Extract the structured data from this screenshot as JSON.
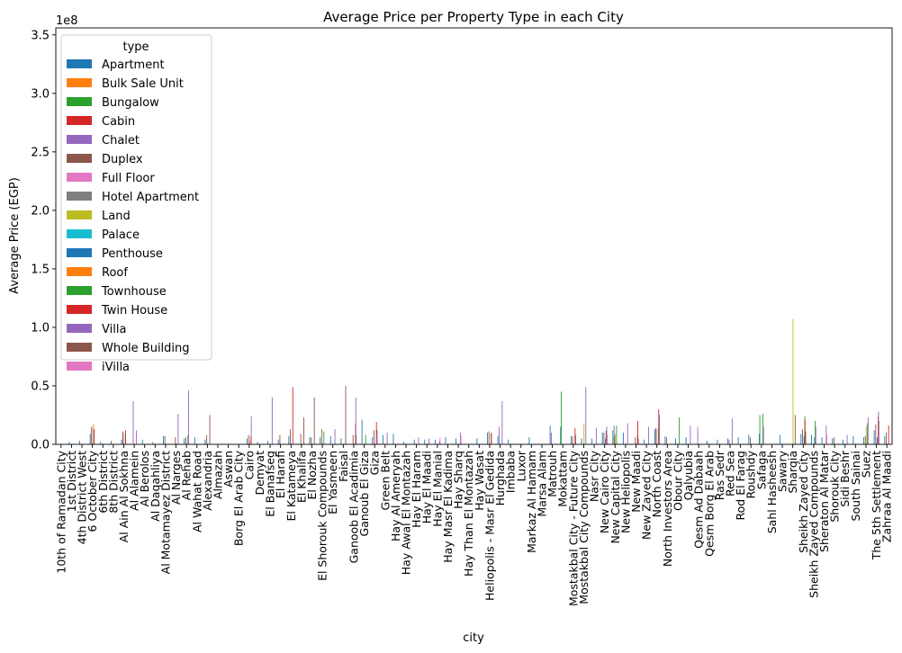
{
  "chart_data": {
    "type": "bar",
    "title": "Average Price per Property Type in each City",
    "xlabel": "city",
    "ylabel": "Average Price (EGP)",
    "y_offset_label": "1e8",
    "ylim": [
      0,
      3.56
    ],
    "yticks": [
      0.0,
      0.5,
      1.0,
      1.5,
      2.0,
      2.5,
      3.0,
      3.5
    ],
    "ytick_labels": [
      "0.0",
      "0.5",
      "1.0",
      "1.5",
      "2.0",
      "2.5",
      "3.0",
      "3.5"
    ],
    "y_unit_multiplier": 100000000,
    "grid": false,
    "legend_title": "type",
    "legend_position": "upper-left",
    "categories": [
      "10th of Ramadan City",
      "1st District",
      "4th District West",
      "6 October City",
      "6th District",
      "8th District",
      "Al Ain Al Sokhna",
      "Al Alamein",
      "Al Berolos",
      "Al Daqahliya",
      "Al Motamayez District",
      "Al Narges",
      "Al Rehab",
      "Al Wahat Road",
      "Alexandria",
      "Almazah",
      "Aswan",
      "Borg El Arab City",
      "Cairo",
      "Demyat",
      "El Banafseg",
      "El Harafi",
      "El Katameya",
      "El Khalifa",
      "El Nozha",
      "El Shorouk Compounds",
      "El Yasmeen",
      "Faisal",
      "Ganoob El Acadimia",
      "Ganoub El Giza",
      "Giza",
      "Green Belt",
      "Hay Al Ameryah",
      "Hay Awal El Montazah",
      "Hay El Haram",
      "Hay El Maadi",
      "Hay El Manial",
      "Hay Masr El Kadima",
      "Hay Sharq",
      "Hay Than El Montazah",
      "Hay Wasat",
      "Heliopolis - Masr El Gedida",
      "Hurghada",
      "Imbaba",
      "Luxor",
      "Markaz Al Hamam",
      "Marsa Alam",
      "Matrouh",
      "Mokattam",
      "Mostakbal City - Future City",
      "Mostakbal City Compounds",
      "Nasr City",
      "New Cairo City",
      "New Capital City",
      "New Heliopolis",
      "New Maadi",
      "New Zayed City",
      "North Coast",
      "North Investors Area",
      "Obour City",
      "Qalyubia",
      "Qesm Ad Dabaah",
      "Qesm Borg El Arab",
      "Ras Sedr",
      "Red Sea",
      "Rod El Farag",
      "Roushdy",
      "Safaga",
      "Sahl Hasheesh",
      "Sawary",
      "Sharqia",
      "Sheikh Zayed City",
      "Sheikh Zayed Compounds",
      "Sheraton Al Matar",
      "Shorouk City",
      "Sidi Beshr",
      "South Sainai",
      "Suez",
      "The 5th Settlement",
      "Zahraa Al Maadi"
    ],
    "series_colors": [
      "#1f77b4",
      "#ff7f0e",
      "#2ca02c",
      "#d62728",
      "#9467bd",
      "#8c564b",
      "#e377c2",
      "#7f7f7f",
      "#bcbd22",
      "#17becf",
      "#1f77b4",
      "#ff7f0e",
      "#2ca02c",
      "#d62728",
      "#9467bd",
      "#8c564b",
      "#e377c2"
    ],
    "series": [
      {
        "name": "Apartment",
        "points": [
          [
            1,
            0.02
          ],
          [
            2,
            0.03
          ],
          [
            3,
            0.09
          ],
          [
            4,
            0.02
          ],
          [
            5,
            0.03
          ],
          [
            6,
            0.04
          ],
          [
            8,
            0.04
          ],
          [
            9,
            0.02
          ],
          [
            10,
            0.07
          ],
          [
            12,
            0.05
          ],
          [
            13,
            0.06
          ],
          [
            14,
            0.04
          ],
          [
            18,
            0.05
          ],
          [
            19,
            0.02
          ],
          [
            20,
            0.03
          ],
          [
            21,
            0.04
          ],
          [
            22,
            0.07
          ],
          [
            24,
            0.06
          ],
          [
            25,
            0.06
          ],
          [
            26,
            0.07
          ],
          [
            27,
            0.05
          ],
          [
            29,
            0.21
          ],
          [
            30,
            0.06
          ],
          [
            31,
            0.08
          ],
          [
            32,
            0.09
          ],
          [
            33,
            0.02
          ],
          [
            34,
            0.04
          ],
          [
            35,
            0.04
          ],
          [
            36,
            0.04
          ],
          [
            37,
            0.06
          ],
          [
            38,
            0.05
          ],
          [
            40,
            0.05
          ],
          [
            41,
            0.1
          ],
          [
            42,
            0.07
          ],
          [
            43,
            0.04
          ],
          [
            45,
            0.06
          ],
          [
            47,
            0.16
          ],
          [
            48,
            0.15
          ],
          [
            49,
            0.07
          ],
          [
            50,
            0.05
          ],
          [
            51,
            0.05
          ],
          [
            52,
            0.1
          ],
          [
            53,
            0.12
          ],
          [
            54,
            0.1
          ],
          [
            56,
            0.04
          ],
          [
            57,
            0.13
          ],
          [
            58,
            0.07
          ],
          [
            59,
            0.05
          ],
          [
            60,
            0.06
          ],
          [
            62,
            0.03
          ],
          [
            63,
            0.04
          ],
          [
            64,
            0.05
          ],
          [
            65,
            0.06
          ],
          [
            66,
            0.08
          ],
          [
            67,
            0.09
          ],
          [
            69,
            0.08
          ],
          [
            71,
            0.09
          ],
          [
            72,
            0.08
          ],
          [
            73,
            0.06
          ],
          [
            74,
            0.05
          ],
          [
            75,
            0.04
          ],
          [
            76,
            0.07
          ],
          [
            77,
            0.06
          ],
          [
            78,
            0.12
          ],
          [
            79,
            0.07
          ]
        ]
      },
      {
        "name": "Bulk Sale Unit",
        "points": []
      },
      {
        "name": "Bungalow",
        "points": [
          [
            48,
            0.45
          ],
          [
            67,
            0.25
          ]
        ]
      },
      {
        "name": "Cabin",
        "points": []
      },
      {
        "name": "Chalet",
        "points": [
          [
            3,
            0.14
          ],
          [
            6,
            0.1
          ],
          [
            7,
            0.37
          ],
          [
            42,
            0.15
          ],
          [
            47,
            0.1
          ],
          [
            53,
            0.16
          ],
          [
            57,
            0.14
          ],
          [
            61,
            0.15
          ],
          [
            64,
            0.04
          ]
        ]
      },
      {
        "name": "Duplex",
        "points": [
          [
            3,
            0.15
          ],
          [
            6,
            0.11
          ],
          [
            10,
            0.07
          ],
          [
            11,
            0.06
          ],
          [
            12,
            0.06
          ],
          [
            14,
            0.08
          ],
          [
            18,
            0.08
          ],
          [
            21,
            0.08
          ],
          [
            22,
            0.13
          ],
          [
            23,
            0.09
          ],
          [
            24,
            0.06
          ],
          [
            25,
            0.13
          ],
          [
            28,
            0.08
          ],
          [
            30,
            0.12
          ],
          [
            41,
            0.11
          ],
          [
            49,
            0.07
          ],
          [
            52,
            0.1
          ],
          [
            53,
            0.07
          ],
          [
            55,
            0.06
          ],
          [
            57,
            0.13
          ],
          [
            58,
            0.06
          ],
          [
            66,
            0.06
          ],
          [
            71,
            0.13
          ],
          [
            74,
            0.06
          ],
          [
            77,
            0.07
          ],
          [
            78,
            0.17
          ],
          [
            79,
            0.1
          ]
        ]
      },
      {
        "name": "Full Floor",
        "points": [
          [
            18,
            0.04
          ],
          [
            30,
            0.04
          ]
        ]
      },
      {
        "name": "Hotel Apartment",
        "points": []
      },
      {
        "name": "Land",
        "points": [
          [
            18,
            0.03
          ],
          [
            50,
            0.18
          ],
          [
            53,
            0.09
          ],
          [
            70,
            1.07
          ],
          [
            77,
            0.15
          ]
        ]
      },
      {
        "name": "Palace",
        "points": []
      },
      {
        "name": "Penthouse",
        "points": [
          [
            52,
            0.05
          ],
          [
            71,
            0.07
          ],
          [
            72,
            0.06
          ],
          [
            78,
            0.06
          ]
        ]
      },
      {
        "name": "Roof",
        "points": [
          [
            3,
            0.17
          ],
          [
            18,
            0.07
          ]
        ]
      },
      {
        "name": "Townhouse",
        "points": [
          [
            3,
            0.12
          ],
          [
            6,
            0.09
          ],
          [
            12,
            0.08
          ],
          [
            25,
            0.11
          ],
          [
            29,
            0.08
          ],
          [
            41,
            0.09
          ],
          [
            52,
            0.12
          ],
          [
            53,
            0.16
          ],
          [
            55,
            0.08
          ],
          [
            57,
            0.14
          ],
          [
            59,
            0.23
          ],
          [
            67,
            0.26
          ],
          [
            71,
            0.24
          ],
          [
            72,
            0.2
          ],
          [
            77,
            0.18
          ]
        ]
      },
      {
        "name": "Twin House",
        "points": [
          [
            3,
            0.13
          ],
          [
            6,
            0.12
          ],
          [
            22,
            0.49
          ],
          [
            28,
            0.18
          ],
          [
            30,
            0.19
          ],
          [
            41,
            0.1
          ],
          [
            49,
            0.14
          ],
          [
            52,
            0.11
          ],
          [
            55,
            0.2
          ],
          [
            57,
            0.3
          ],
          [
            71,
            0.21
          ],
          [
            78,
            0.24
          ],
          [
            79,
            0.16
          ]
        ]
      },
      {
        "name": "Villa",
        "points": [
          [
            7,
            0.12
          ],
          [
            11,
            0.26
          ],
          [
            12,
            0.46
          ],
          [
            18,
            0.24
          ],
          [
            20,
            0.4
          ],
          [
            26,
            0.13
          ],
          [
            28,
            0.4
          ],
          [
            30,
            0.1
          ],
          [
            31,
            0.1
          ],
          [
            34,
            0.06
          ],
          [
            35,
            0.05
          ],
          [
            36,
            0.03
          ],
          [
            38,
            0.1
          ],
          [
            42,
            0.37
          ],
          [
            50,
            0.49
          ],
          [
            51,
            0.14
          ],
          [
            52,
            0.15
          ],
          [
            54,
            0.18
          ],
          [
            56,
            0.15
          ],
          [
            57,
            0.26
          ],
          [
            60,
            0.16
          ],
          [
            64,
            0.22
          ],
          [
            67,
            0.15
          ],
          [
            72,
            0.15
          ],
          [
            73,
            0.16
          ],
          [
            75,
            0.08
          ],
          [
            77,
            0.23
          ],
          [
            78,
            0.28
          ]
        ]
      },
      {
        "name": "Whole Building",
        "points": [
          [
            14,
            0.25
          ],
          [
            23,
            0.23
          ],
          [
            24,
            0.4
          ],
          [
            27,
            0.5
          ],
          [
            28,
            0.08
          ],
          [
            30,
            0.12
          ],
          [
            49,
            0.08
          ],
          [
            57,
            0.25
          ],
          [
            70,
            0.25
          ],
          [
            71,
            0.11
          ],
          [
            78,
            0.2
          ]
        ]
      },
      {
        "name": "iVilla",
        "points": [
          [
            30,
            0.05
          ],
          [
            36,
            0.06
          ],
          [
            38,
            0.07
          ],
          [
            52,
            0.08
          ],
          [
            55,
            0.05
          ],
          [
            57,
            0.06
          ],
          [
            73,
            0.08
          ],
          [
            78,
            0.1
          ]
        ]
      }
    ]
  }
}
